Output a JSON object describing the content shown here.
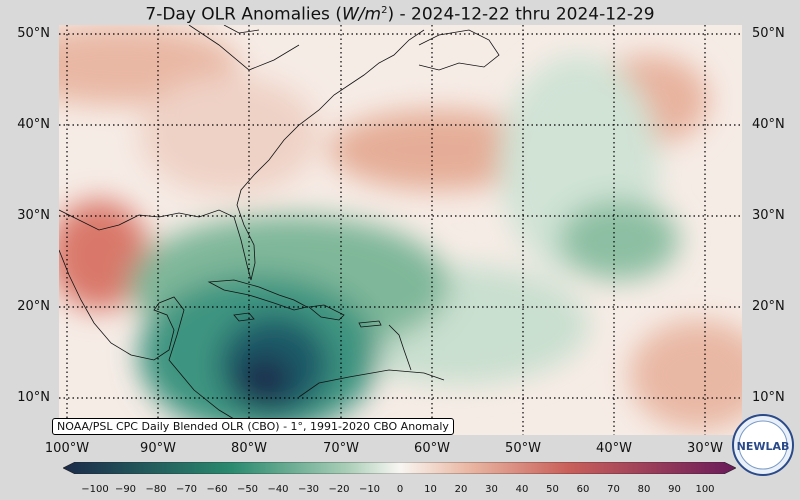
{
  "title": {
    "prefix": "7-Day OLR Anomalies (",
    "unit": "W/m",
    "sup": "2",
    "suffix": ") - 2024-12-22 thru 2024-12-29"
  },
  "latitudes": [
    "50°N",
    "40°N",
    "30°N",
    "20°N",
    "10°N"
  ],
  "longitudes": [
    "100°W",
    "90°W",
    "80°W",
    "70°W",
    "60°W",
    "50°W",
    "40°W",
    "30°W"
  ],
  "attribution": "NOAA/PSL CPC Daily Blended OLR (CBO) - 1°, 1991-2020 CBO Anomaly",
  "colorbar": {
    "ticks": [
      "−100",
      "−90",
      "−80",
      "−70",
      "−60",
      "−50",
      "−40",
      "−30",
      "−20",
      "−10",
      "0",
      "10",
      "20",
      "30",
      "40",
      "50",
      "60",
      "70",
      "80",
      "90",
      "100"
    ],
    "colors": {
      "min": "#1b2a49",
      "neg_mid": "#2a8a6e",
      "neg_low": "#a8cdb6",
      "zero": "#f8f6f2",
      "pos_low": "#eab9a5",
      "pos_mid": "#c9605a",
      "max": "#6a1a5a"
    }
  },
  "logo": {
    "text": "NEWLAB",
    "icon": "psl-logo-icon"
  }
}
